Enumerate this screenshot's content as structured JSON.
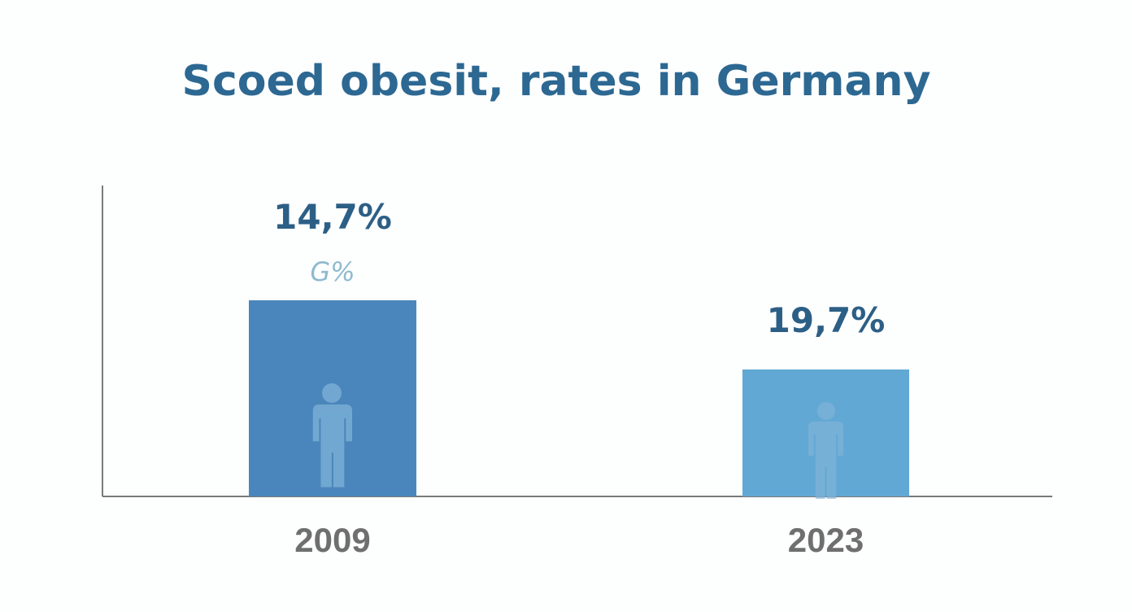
{
  "chart_data": {
    "type": "bar",
    "title": "Scoed obesit, rates in Germany",
    "xlabel": "",
    "ylabel": "",
    "categories": [
      "2009",
      "2023"
    ],
    "values": [
      14.7,
      19.7
    ],
    "data_labels": [
      "14,7%",
      "19,7%"
    ],
    "annotations": [
      "G%"
    ],
    "grid": false,
    "legend": "none",
    "colors": {
      "title": "#2c6892",
      "bar_2009": "#4a86bb",
      "bar_2023": "#62a8d4",
      "value_label": "#2c5f86",
      "year_label": "#6f6f6f",
      "axis": "#7a7a7a",
      "annotation": "#8fbad0",
      "person_icon": "#7fb3d8"
    },
    "icons": [
      "person-icon",
      "person-icon"
    ]
  }
}
